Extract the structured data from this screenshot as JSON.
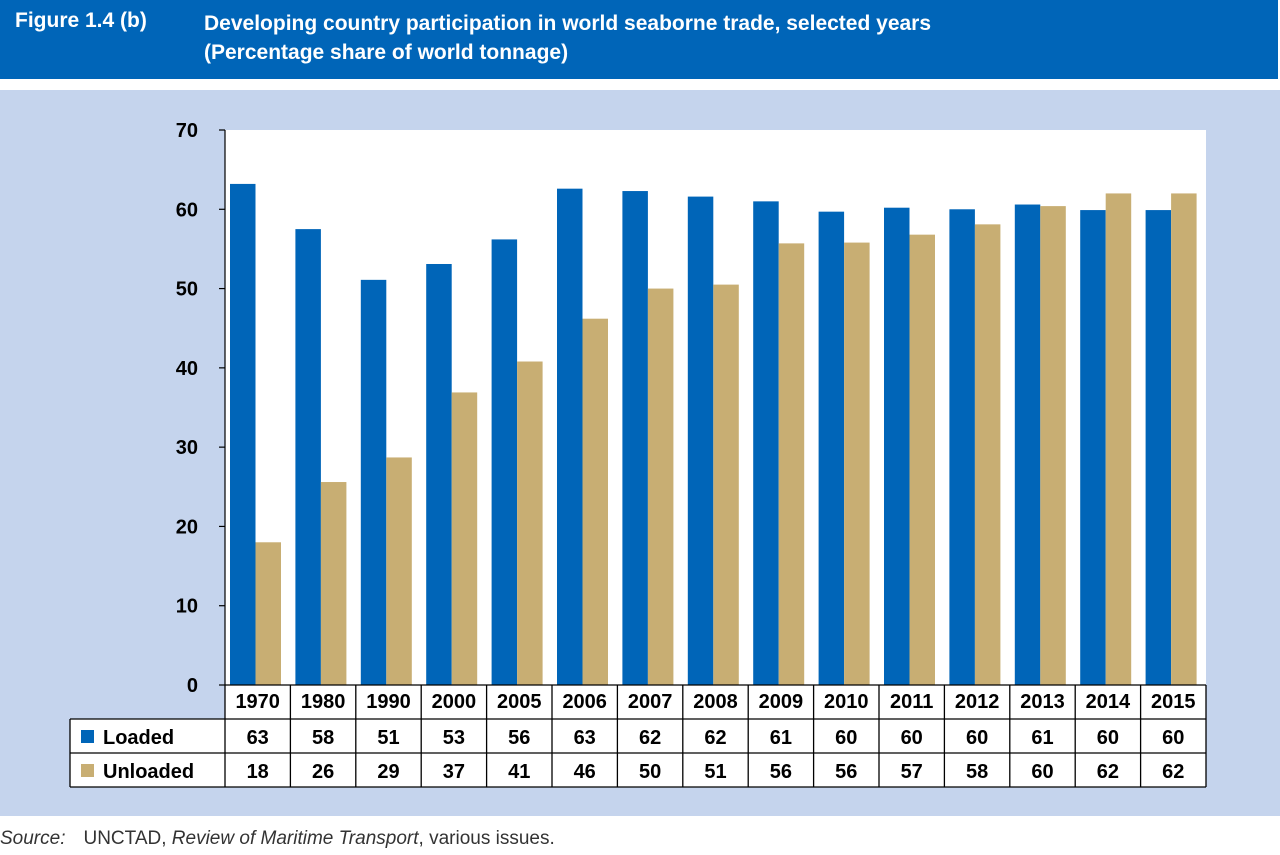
{
  "header": {
    "figure_label": "Figure 1.4 (b)",
    "title_line1": "Developing country participation in world seaborne trade, selected years",
    "title_line2": "(Percentage share of world tonnage)"
  },
  "chart_data": {
    "type": "bar",
    "categories": [
      "1970",
      "1980",
      "1990",
      "2000",
      "2005",
      "2006",
      "2007",
      "2008",
      "2009",
      "2010",
      "2011",
      "2012",
      "2013",
      "2014",
      "2015"
    ],
    "series": [
      {
        "name": "Loaded",
        "color": "#0065b8",
        "values": [
          63,
          58,
          51,
          53,
          56,
          63,
          62,
          62,
          61,
          60,
          60,
          60,
          61,
          60,
          60
        ],
        "bar_values": [
          63.2,
          57.5,
          51.1,
          53.1,
          56.2,
          62.6,
          62.3,
          61.6,
          61.0,
          59.7,
          60.2,
          60.0,
          60.6,
          59.9,
          59.9
        ]
      },
      {
        "name": "Unloaded",
        "color": "#c8ae73",
        "values": [
          18,
          26,
          29,
          37,
          41,
          46,
          50,
          51,
          56,
          56,
          57,
          58,
          60,
          62,
          62
        ],
        "bar_values": [
          18.0,
          25.6,
          28.7,
          36.9,
          40.8,
          46.2,
          50.0,
          50.5,
          55.7,
          55.8,
          56.8,
          58.1,
          60.4,
          62.0,
          62.0
        ]
      }
    ],
    "yticks": [
      "0",
      "10",
      "20",
      "30",
      "40",
      "50",
      "60",
      "70"
    ],
    "ylim": [
      0,
      70
    ],
    "legend": "table-left"
  },
  "source": {
    "label": "Source:",
    "org": "UNCTAD, ",
    "publication": "Review of Maritime Transport",
    "rest": ", various issues."
  }
}
